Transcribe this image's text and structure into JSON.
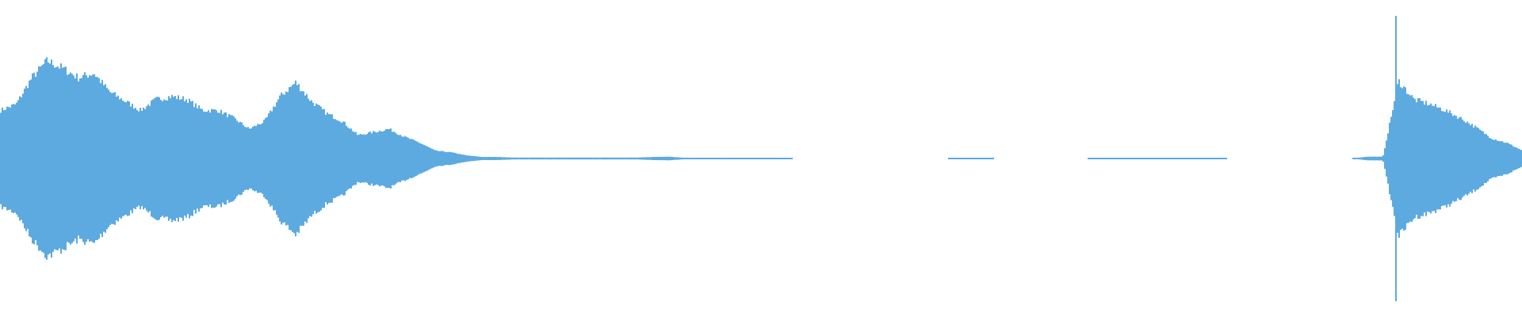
{
  "chart_data": {
    "type": "area",
    "title": "",
    "xlabel": "",
    "ylabel": "",
    "ylim": [
      -1,
      1
    ],
    "grid": false,
    "legend": "none",
    "color": "#5DAAE0",
    "background": "#FFFFFF",
    "symmetric": true,
    "amplitude_envelope": [
      0.31,
      0.35,
      0.52,
      0.63,
      0.58,
      0.52,
      0.55,
      0.43,
      0.37,
      0.31,
      0.38,
      0.4,
      0.38,
      0.31,
      0.31,
      0.26,
      0.19,
      0.24,
      0.4,
      0.49,
      0.37,
      0.29,
      0.24,
      0.15,
      0.17,
      0.19,
      0.14,
      0.1,
      0.05,
      0.04,
      0.02,
      0.01,
      0.01,
      0.006,
      0.006,
      0.006,
      0.006,
      0.006,
      0.006,
      0.006,
      0.006,
      0.006,
      0.01,
      0.012,
      0.005,
      0.005,
      0.005,
      0.005,
      0.005,
      0.005,
      0.005,
      0,
      0,
      0,
      0,
      0,
      0,
      0,
      0,
      0,
      0,
      0,
      0.003,
      0.003,
      0,
      0,
      0,
      0,
      0,
      0,
      0,
      0.004,
      0.004,
      0.004,
      0.004,
      0.004,
      0.004,
      0.004,
      0.004,
      0,
      0,
      0,
      0,
      0,
      0,
      0,
      0,
      0,
      0.012,
      0.012,
      0.5,
      0.38,
      0.35,
      0.31,
      0.26,
      0.2,
      0.13,
      0.1,
      0.05
    ]
  }
}
